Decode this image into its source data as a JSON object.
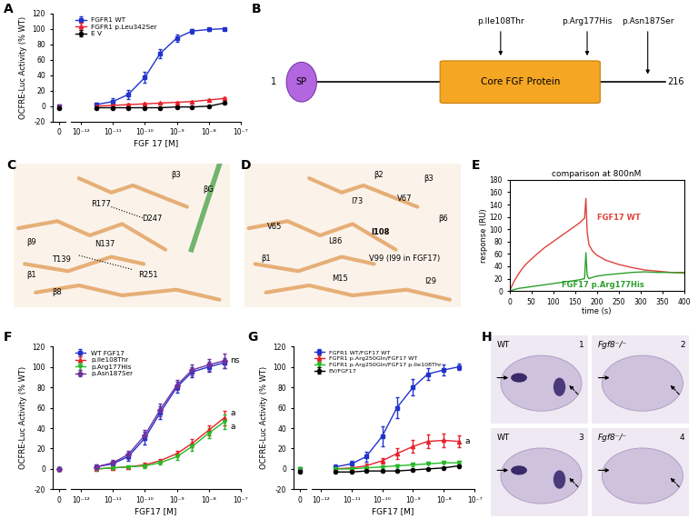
{
  "chart_data": [
    {
      "panel": "A",
      "type": "line",
      "log": "x",
      "legend": "upper left",
      "x_label": "FGF 17 [M]",
      "y_label": "OCFRE-Luc Activity (% WT)",
      "x": [
        0,
        3e-12,
        1e-11,
        3e-11,
        1e-10,
        3e-10,
        1e-09,
        3e-09,
        1e-08,
        3e-08
      ],
      "xlim": [
        5e-13,
        1e-07
      ],
      "xticks": [
        0,
        {
          "value": 1e-12,
          "label": "10⁻¹²"
        },
        {
          "value": 1e-11,
          "label": "10⁻¹¹"
        },
        {
          "value": 1e-10,
          "label": "10⁻¹⁰"
        },
        {
          "value": 1e-09,
          "label": "10⁻⁹"
        },
        {
          "value": 1e-08,
          "label": "10⁻⁸"
        },
        {
          "value": 1e-07,
          "label": "10⁻⁷"
        }
      ],
      "ylim": [
        -20,
        120
      ],
      "yticks": [
        -20,
        0,
        20,
        40,
        60,
        80,
        100,
        120
      ],
      "series": [
        {
          "name": "FGFR1 WT",
          "color": "#2233cc",
          "marker": "square",
          "values": [
            0,
            2,
            6,
            15,
            37,
            68,
            88,
            97,
            99,
            100
          ],
          "errors": [
            2,
            3,
            4,
            6,
            7,
            6,
            5,
            3,
            2,
            1
          ]
        },
        {
          "name": "FGFR1 p.Leu342Ser",
          "color": "#e8202a",
          "marker": "triangle_up",
          "values": [
            0,
            0,
            1,
            2,
            3,
            4,
            5,
            6,
            8,
            10
          ],
          "errors": [
            1,
            1,
            1,
            1,
            1,
            1,
            1,
            1,
            1,
            1
          ]
        },
        {
          "name": "E V",
          "color": "#000000",
          "marker": "circle",
          "values": [
            -3,
            -2,
            -2,
            -2,
            -2,
            -2,
            -1,
            -1,
            0,
            4
          ],
          "errors": [
            1,
            1,
            1,
            1,
            1,
            1,
            1,
            1,
            1,
            1
          ]
        }
      ]
    },
    {
      "panel": "E",
      "type": "line",
      "title": "comparison at 800nM",
      "x_label": "time (s)",
      "y_label": "response (RU)",
      "x": [
        0,
        10,
        20,
        30,
        40,
        60,
        80,
        100,
        120,
        140,
        160,
        172,
        175,
        178,
        182,
        190,
        200,
        220,
        250,
        280,
        310,
        340,
        370,
        400
      ],
      "xlim": [
        0,
        400
      ],
      "xticks": [
        0,
        50,
        100,
        150,
        200,
        250,
        300,
        350,
        400
      ],
      "ylim": [
        0,
        180
      ],
      "yticks": [
        0,
        20,
        40,
        60,
        80,
        100,
        120,
        140,
        160,
        180
      ],
      "series": [
        {
          "name": "FGF17 WT",
          "color": "#e0433a",
          "values": [
            0,
            15,
            27,
            37,
            45,
            58,
            70,
            80,
            90,
            100,
            110,
            118,
            150,
            95,
            75,
            65,
            58,
            50,
            43,
            38,
            34,
            32,
            30,
            30
          ]
        },
        {
          "name": "FGF17 p.Arg177His",
          "color": "#2ca02c",
          "values": [
            0,
            2,
            4,
            5,
            6,
            8,
            10,
            12,
            14,
            16,
            18,
            20,
            62,
            25,
            20,
            22,
            24,
            26,
            28,
            30,
            31,
            30,
            30,
            29
          ]
        }
      ]
    },
    {
      "panel": "F",
      "type": "line",
      "log": "x",
      "legend": "upper left",
      "x_label": "FGF17 [M]",
      "y_label": "OCFRE-Luc Activity (% WT)",
      "x": [
        0,
        3e-12,
        1e-11,
        3e-11,
        1e-10,
        3e-10,
        1e-09,
        3e-09,
        1e-08,
        3e-08
      ],
      "xlim": [
        5e-13,
        1e-07
      ],
      "xticks": [
        0,
        {
          "value": 1e-12,
          "label": "10⁻¹²"
        },
        {
          "value": 1e-11,
          "label": "10⁻¹¹"
        },
        {
          "value": 1e-10,
          "label": "10⁻¹⁰"
        },
        {
          "value": 1e-09,
          "label": "10⁻⁹"
        },
        {
          "value": 1e-08,
          "label": "10⁻⁸"
        },
        {
          "value": 1e-07,
          "label": "10⁻⁷"
        }
      ],
      "ylim": [
        -20,
        120
      ],
      "yticks": [
        -20,
        0,
        20,
        40,
        60,
        80,
        100,
        120
      ],
      "series": [
        {
          "name": "WT FGF17",
          "color": "#2233cc",
          "marker": "square",
          "values": [
            0,
            2,
            5,
            12,
            30,
            55,
            80,
            95,
            100,
            104
          ],
          "errors": [
            2,
            2,
            3,
            4,
            6,
            6,
            5,
            5,
            5,
            5
          ]
        },
        {
          "name": "p.Ile108Thr",
          "color": "#e8202a",
          "marker": "triangle_up",
          "annotation": "a",
          "values": [
            0,
            0,
            1,
            2,
            4,
            8,
            15,
            25,
            38,
            50
          ],
          "errors": [
            1,
            1,
            1,
            1,
            2,
            2,
            3,
            4,
            5,
            7
          ]
        },
        {
          "name": "p.Arg177His",
          "color": "#22bb22",
          "marker": "triangle_down",
          "annotation": "a",
          "values": [
            0,
            0,
            1,
            2,
            3,
            6,
            12,
            22,
            35,
            46
          ],
          "errors": [
            1,
            1,
            1,
            1,
            2,
            2,
            3,
            4,
            5,
            7
          ]
        },
        {
          "name": "p.Asn187Ser",
          "color": "#7030a0",
          "marker": "diamond",
          "annotation": "ns",
          "values": [
            0,
            2,
            6,
            14,
            33,
            58,
            82,
            97,
            102,
            106
          ],
          "errors": [
            2,
            2,
            3,
            4,
            5,
            6,
            5,
            5,
            6,
            7
          ]
        }
      ]
    },
    {
      "panel": "G",
      "type": "line",
      "log": "x",
      "legend": "upper left",
      "x_label": "FGF17 [M]",
      "y_label": "OCFRE-Luc Activity (% WT)",
      "x": [
        0,
        3e-12,
        1e-11,
        3e-11,
        1e-10,
        3e-10,
        1e-09,
        3e-09,
        1e-08,
        3e-08
      ],
      "xlim": [
        5e-13,
        1e-07
      ],
      "xticks": [
        0,
        {
          "value": 1e-12,
          "label": "10⁻¹²"
        },
        {
          "value": 1e-11,
          "label": "10⁻¹¹"
        },
        {
          "value": 1e-10,
          "label": "10⁻¹⁰"
        },
        {
          "value": 1e-09,
          "label": "10⁻⁹"
        },
        {
          "value": 1e-08,
          "label": "10⁻⁸"
        },
        {
          "value": 1e-07,
          "label": "10⁻⁷"
        }
      ],
      "ylim": [
        -20,
        120
      ],
      "yticks": [
        -20,
        0,
        20,
        40,
        60,
        80,
        100,
        120
      ],
      "series": [
        {
          "name": "FGFR1 WT/FGF17 WT",
          "color": "#2233cc",
          "marker": "square",
          "values": [
            0,
            2,
            5,
            12,
            32,
            60,
            80,
            93,
            97,
            100
          ],
          "errors": [
            2,
            2,
            3,
            5,
            10,
            10,
            8,
            6,
            5,
            3
          ]
        },
        {
          "name": "FGFR1 p.Arg250Gln/FGF17 WT",
          "color": "#e8202a",
          "marker": "triangle_up",
          "annotation": "a",
          "values": [
            0,
            0,
            1,
            3,
            8,
            15,
            22,
            27,
            28,
            27
          ],
          "errors": [
            1,
            1,
            1,
            2,
            3,
            5,
            6,
            7,
            7,
            6
          ]
        },
        {
          "name": "FGFR1 p.Arg250Gln/FGF17 p.Ile108Thr",
          "color": "#22bb22",
          "marker": "triangle_down",
          "values": [
            0,
            0,
            0,
            1,
            2,
            3,
            4,
            5,
            6,
            6
          ],
          "errors": [
            1,
            1,
            1,
            1,
            1,
            1,
            1,
            1,
            1,
            1
          ]
        },
        {
          "name": "EV/FGF17",
          "color": "#000000",
          "marker": "circle",
          "values": [
            -3,
            -3,
            -3,
            -2,
            -2,
            -2,
            -1,
            0,
            1,
            3
          ],
          "errors": [
            1,
            1,
            1,
            1,
            1,
            1,
            1,
            1,
            1,
            1
          ]
        }
      ]
    }
  ],
  "diagram": {
    "panel": "B",
    "signal_peptide": "SP",
    "domain": "Core FGF Protein",
    "start": "1",
    "end": "216",
    "variants": [
      "p.Ile108Thr",
      "p.Arg177His",
      "p.Asn187Ser"
    ]
  },
  "structures": [
    {
      "panel": "C",
      "labels": [
        "R177",
        "D247",
        "N137",
        "T139",
        "R251",
        "β9",
        "β1",
        "β8",
        "β3",
        "βG"
      ]
    },
    {
      "panel": "D",
      "labels": [
        "β2",
        "β3",
        "V67",
        "I73",
        "β6",
        "V65",
        "L86",
        "I108",
        "β1",
        "V99 (I99 in FGF17)",
        "M15",
        "I29"
      ]
    }
  ],
  "images": {
    "panel": "H",
    "tiles": [
      {
        "genotype": "WT",
        "number": "1"
      },
      {
        "genotype": "Fgf8⁻/⁻",
        "number": "2"
      },
      {
        "genotype": "WT",
        "number": "3"
      },
      {
        "genotype": "Fgf8⁻/⁻",
        "number": "4"
      }
    ]
  }
}
